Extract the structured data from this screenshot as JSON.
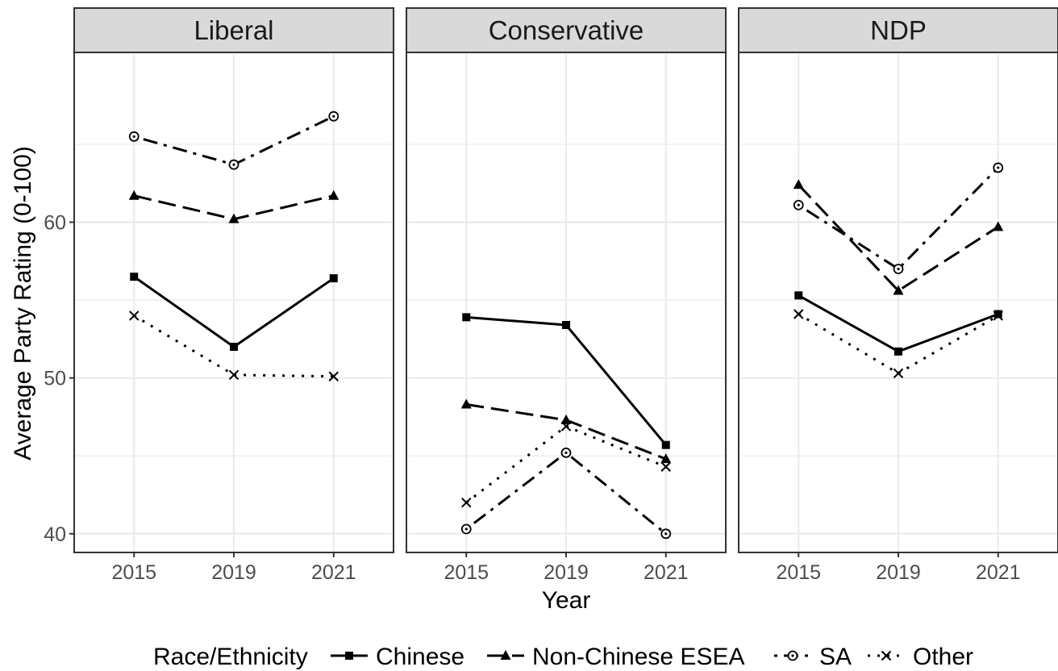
{
  "chart_data": {
    "type": "line",
    "facet_variable": "party",
    "panels": [
      {
        "title": "Liberal",
        "series": [
          {
            "name": "Chinese",
            "values": [
              56.5,
              52.0,
              56.4
            ]
          },
          {
            "name": "Non-Chinese ESEA",
            "values": [
              61.7,
              60.2,
              61.7
            ]
          },
          {
            "name": "SA",
            "values": [
              65.5,
              63.7,
              66.8
            ]
          },
          {
            "name": "Other",
            "values": [
              54.0,
              50.2,
              50.1
            ]
          }
        ]
      },
      {
        "title": "Conservative",
        "series": [
          {
            "name": "Chinese",
            "values": [
              53.9,
              53.4,
              45.7
            ]
          },
          {
            "name": "Non-Chinese ESEA",
            "values": [
              48.3,
              47.3,
              44.8
            ]
          },
          {
            "name": "SA",
            "values": [
              40.3,
              45.2,
              40.0
            ]
          },
          {
            "name": "Other",
            "values": [
              42.0,
              46.9,
              44.3
            ]
          }
        ]
      },
      {
        "title": "NDP",
        "series": [
          {
            "name": "Chinese",
            "values": [
              55.3,
              51.7,
              54.1
            ]
          },
          {
            "name": "Non-Chinese ESEA",
            "values": [
              62.4,
              55.6,
              59.7
            ]
          },
          {
            "name": "SA",
            "values": [
              61.1,
              57.0,
              63.5
            ]
          },
          {
            "name": "Other",
            "values": [
              54.1,
              50.3,
              54.0
            ]
          }
        ]
      }
    ],
    "categories": [
      "2015",
      "2019",
      "2021"
    ],
    "xlabel": "Year",
    "ylabel": "Average Party Rating (0-100)",
    "ylim": [
      38.8,
      70.9
    ],
    "yticks": [
      40,
      50,
      60
    ],
    "grid": true,
    "legend": {
      "title": "Race/Ethnicity",
      "position": "bottom",
      "entries": [
        "Chinese",
        "Non-Chinese ESEA",
        "SA",
        "Other"
      ]
    },
    "styles": {
      "Chinese": {
        "dash": "solid",
        "marker": "square"
      },
      "Non-Chinese ESEA": {
        "dash": "longdash",
        "marker": "triangle"
      },
      "SA": {
        "dash": "dotdash",
        "marker": "circle-dot"
      },
      "Other": {
        "dash": "dotted",
        "marker": "x"
      }
    },
    "colors": {
      "line": "#000000",
      "strip_bg": "#d9d9d9",
      "grid": "#ebebeb",
      "panel_border": "#333333"
    }
  }
}
